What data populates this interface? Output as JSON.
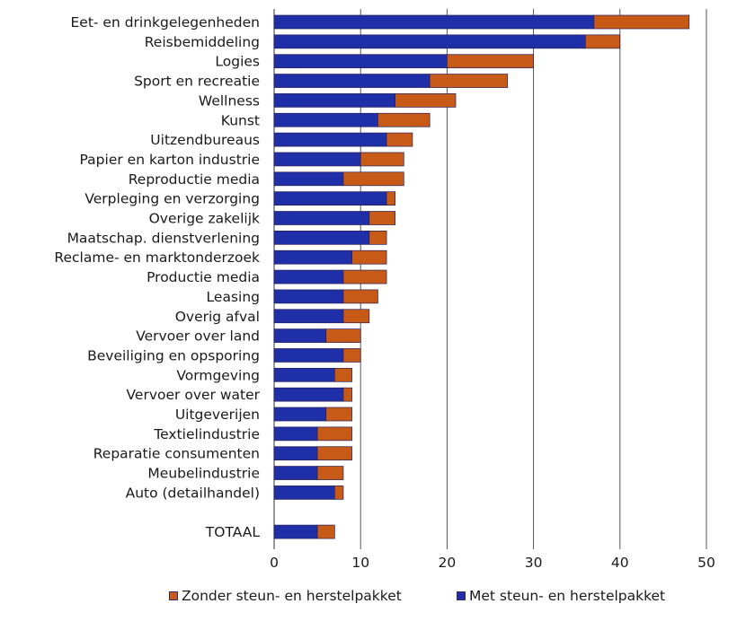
{
  "chart_data": {
    "type": "bar",
    "orientation": "horizontal",
    "stacked": true,
    "categories": [
      "Eet- en drinkgelegenheden",
      "Reisbemiddeling",
      "Logies",
      "Sport en recreatie",
      "Wellness",
      "Kunst",
      "Uitzendbureaus",
      "Papier en karton industrie",
      "Reproductie media",
      "Verpleging en verzorging",
      "Overige zakelijk",
      "Maatschap. dienstverlening",
      "Reclame- en marktonderzoek",
      "Productie media",
      "Leasing",
      "Overig afval",
      "Vervoer over land",
      "Beveiliging en opsporing",
      "Vormgeving",
      "Vervoer over water",
      "Uitgeverijen",
      "Textielindustrie",
      "Reparatie consumenten",
      "Meubelindustrie",
      "Auto (detailhandel)",
      "",
      "TOTAAL"
    ],
    "series": [
      {
        "name": "Met steun- en herstelpakket",
        "color": "#1f2fa8",
        "values": [
          37,
          36,
          20,
          18,
          14,
          12,
          13,
          10,
          8,
          13,
          11,
          11,
          9,
          8,
          8,
          8,
          6,
          8,
          7,
          8,
          6,
          5,
          5,
          5,
          7,
          null,
          5
        ]
      },
      {
        "name": "Zonder steun- en herstelpakket",
        "color": "#c85a17",
        "values": [
          11,
          4,
          10,
          9,
          7,
          6,
          3,
          5,
          7,
          1,
          3,
          2,
          4,
          5,
          4,
          3,
          4,
          2,
          2,
          1,
          3,
          4,
          4,
          3,
          1,
          null,
          2
        ]
      }
    ],
    "xlim": [
      0,
      50
    ],
    "xticks": [
      0,
      10,
      20,
      30,
      40,
      50
    ],
    "grid": "vertical",
    "legend": "bottom",
    "title": "",
    "xlabel": "",
    "ylabel": ""
  },
  "legend": {
    "items": [
      {
        "label": "Zonder steun- en herstelpakket",
        "color": "#c85a17"
      },
      {
        "label": "Met steun- en herstelpakket",
        "color": "#1f2fa8"
      }
    ]
  }
}
